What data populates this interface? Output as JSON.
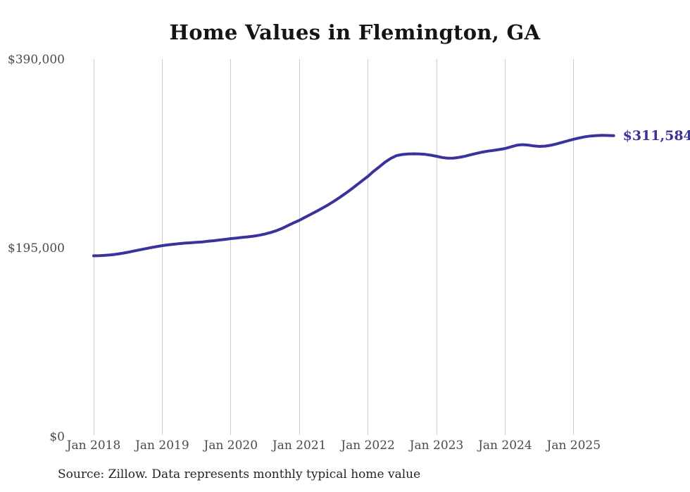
{
  "title": "Home Values in Flemington, GA",
  "source_note": "Source: Zillow. Data represents monthly typical home value",
  "current_value_label": "$311,584",
  "colors": {
    "line": "#3a339c",
    "end_label": "#39329b",
    "grid": "#cdcdcd",
    "axis_text": "#4b4b4b",
    "title_text": "#141414",
    "source_text": "#242424",
    "background": "#ffffff"
  },
  "chart_data": {
    "type": "line",
    "title": "Home Values in Flemington, GA",
    "xlabel": "",
    "ylabel": "",
    "unit": "USD",
    "cadence": "monthly",
    "x_start_month": "2018-01",
    "x_end_month": "2025-08",
    "x_tick_labels": [
      "Jan 2018",
      "Jan 2019",
      "Jan 2020",
      "Jan 2021",
      "Jan 2022",
      "Jan 2023",
      "Jan 2024",
      "Jan 2025"
    ],
    "y_ticks": [
      390000,
      195000,
      0
    ],
    "y_tick_labels": [
      "$390,000",
      "$195,000",
      "$0"
    ],
    "ylim": [
      0,
      390000
    ],
    "grid": "vertical-only",
    "legend": "none",
    "annotation": {
      "text": "$311,584",
      "position": "line-end"
    },
    "series": [
      {
        "name": "Typical home value",
        "last_value": 311584,
        "monthly_values": [
          187400,
          187600,
          187900,
          188400,
          189100,
          190000,
          191100,
          192300,
          193500,
          194700,
          195900,
          196900,
          197900,
          198700,
          199400,
          200000,
          200500,
          200900,
          201300,
          201800,
          202400,
          203000,
          203700,
          204400,
          205200,
          205800,
          206400,
          207000,
          207700,
          208700,
          210000,
          211500,
          213400,
          215800,
          218700,
          221500,
          224100,
          227200,
          230300,
          233400,
          236600,
          240000,
          243600,
          247500,
          251600,
          256000,
          260500,
          265100,
          269600,
          274800,
          279400,
          284300,
          288100,
          291000,
          292100,
          292700,
          292900,
          292700,
          292300,
          291400,
          290300,
          289000,
          288300,
          288400,
          289200,
          290400,
          291900,
          293300,
          294600,
          295600,
          296400,
          297300,
          298300,
          300000,
          301700,
          302300,
          301900,
          301000,
          300500,
          300800,
          301700,
          303100,
          304700,
          306300,
          307900,
          309300,
          310500,
          311300,
          311700,
          311900,
          311800,
          311584
        ]
      }
    ]
  }
}
